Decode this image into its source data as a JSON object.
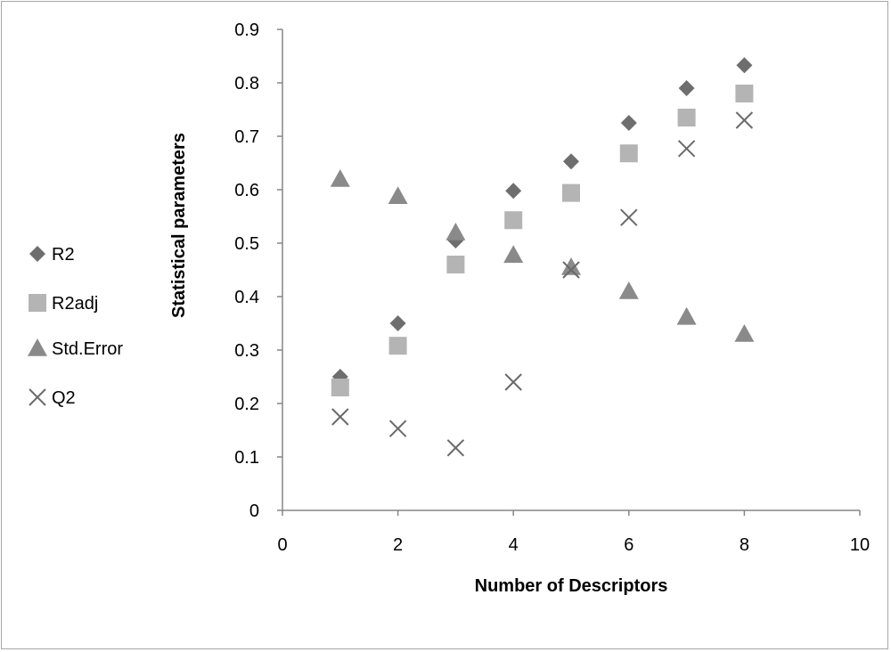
{
  "chart_data": {
    "type": "scatter",
    "title": "",
    "xlabel": "Number of Descriptors",
    "ylabel": "Statistical parameters",
    "xlim": [
      0,
      10
    ],
    "ylim": [
      0,
      0.9
    ],
    "x_ticks": [
      "0",
      "2",
      "4",
      "6",
      "8",
      "10"
    ],
    "y_ticks": [
      "0",
      "0.1",
      "0.2",
      "0.3",
      "0.4",
      "0.5",
      "0.6",
      "0.7",
      "0.8",
      "0.9"
    ],
    "grid": false,
    "legend_position": "left",
    "series": [
      {
        "name": "R2",
        "marker": "diamond",
        "color": "#6e6e6e",
        "x": [
          1,
          2,
          3,
          4,
          5,
          6,
          7,
          8
        ],
        "y": [
          0.25,
          0.35,
          0.505,
          0.598,
          0.653,
          0.725,
          0.79,
          0.833
        ]
      },
      {
        "name": "R2adj",
        "marker": "square",
        "color": "#b4b4b4",
        "x": [
          1,
          2,
          3,
          4,
          5,
          6,
          7,
          8
        ],
        "y": [
          0.23,
          0.308,
          0.46,
          0.543,
          0.594,
          0.668,
          0.735,
          0.78
        ]
      },
      {
        "name": "Std.Error",
        "marker": "triangle",
        "color": "#8a8a8a",
        "x": [
          1,
          2,
          3,
          4,
          5,
          6,
          7,
          8
        ],
        "y": [
          0.62,
          0.588,
          0.52,
          0.478,
          0.455,
          0.41,
          0.362,
          0.33
        ]
      },
      {
        "name": "Q2",
        "marker": "x",
        "color": "#6a6a6a",
        "x": [
          1,
          2,
          3,
          4,
          5,
          6,
          7,
          8
        ],
        "y": [
          0.175,
          0.153,
          0.117,
          0.24,
          0.45,
          0.548,
          0.677,
          0.73
        ]
      }
    ]
  }
}
